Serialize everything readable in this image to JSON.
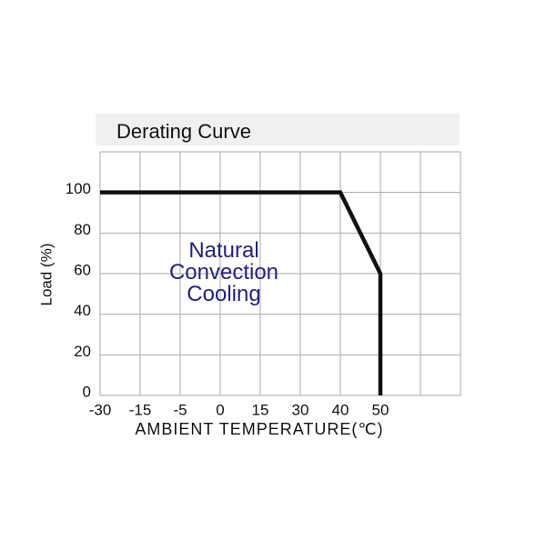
{
  "chart_data": {
    "type": "line",
    "title": "Derating Curve",
    "annotation": "Natural\nConvection\nCooling",
    "xlabel": "AMBIENT TEMPERATURE(℃)",
    "ylabel": "Load (%)",
    "xticks": [
      -30,
      -15,
      -5,
      0,
      15,
      30,
      40,
      50
    ],
    "ylim": [
      0,
      120
    ],
    "yticks": [
      0,
      20,
      40,
      60,
      80,
      100
    ],
    "grid": true,
    "series": [
      {
        "color": "#111111",
        "x": [
          -30,
          40,
          50,
          50
        ],
        "values": [
          100,
          100,
          60,
          0
        ]
      }
    ]
  }
}
